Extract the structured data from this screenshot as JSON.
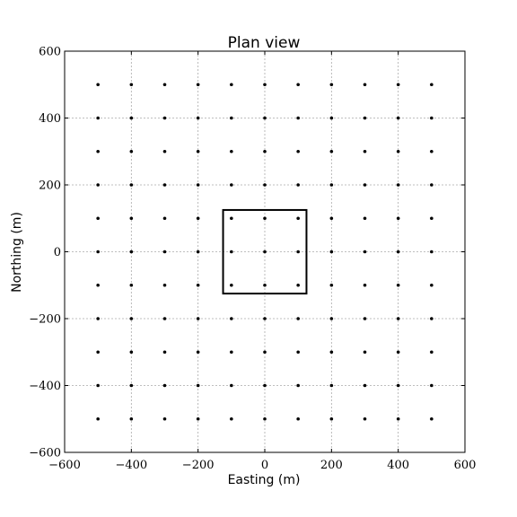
{
  "chart_data": {
    "type": "scatter",
    "title": "Plan view",
    "xlabel": "Easting (m)",
    "ylabel": "Northing (m)",
    "xlim": [
      -600,
      600
    ],
    "ylim": [
      -600,
      600
    ],
    "xticks": [
      -600,
      -400,
      -200,
      0,
      200,
      400,
      600
    ],
    "yticks": [
      -600,
      -400,
      -200,
      0,
      200,
      400,
      600
    ],
    "xtick_labels": [
      "−600",
      "−400",
      "−200",
      "0",
      "200",
      "400",
      "600"
    ],
    "ytick_labels": [
      "−600",
      "−400",
      "−200",
      "0",
      "200",
      "400",
      "600"
    ],
    "grid": true,
    "grid_x": [
      -500,
      -400,
      -300,
      -200,
      -100,
      0,
      100,
      200,
      300,
      400,
      500
    ],
    "grid_y": [
      -500,
      -400,
      -300,
      -200,
      -100,
      0,
      100,
      200,
      300,
      400,
      500
    ],
    "rectangle": {
      "x_min": -125,
      "x_max": 125,
      "y_min": -125,
      "y_max": 125
    },
    "colors": {
      "points": "#000000",
      "grid": "#aaaaaa",
      "frame": "#000000"
    }
  }
}
